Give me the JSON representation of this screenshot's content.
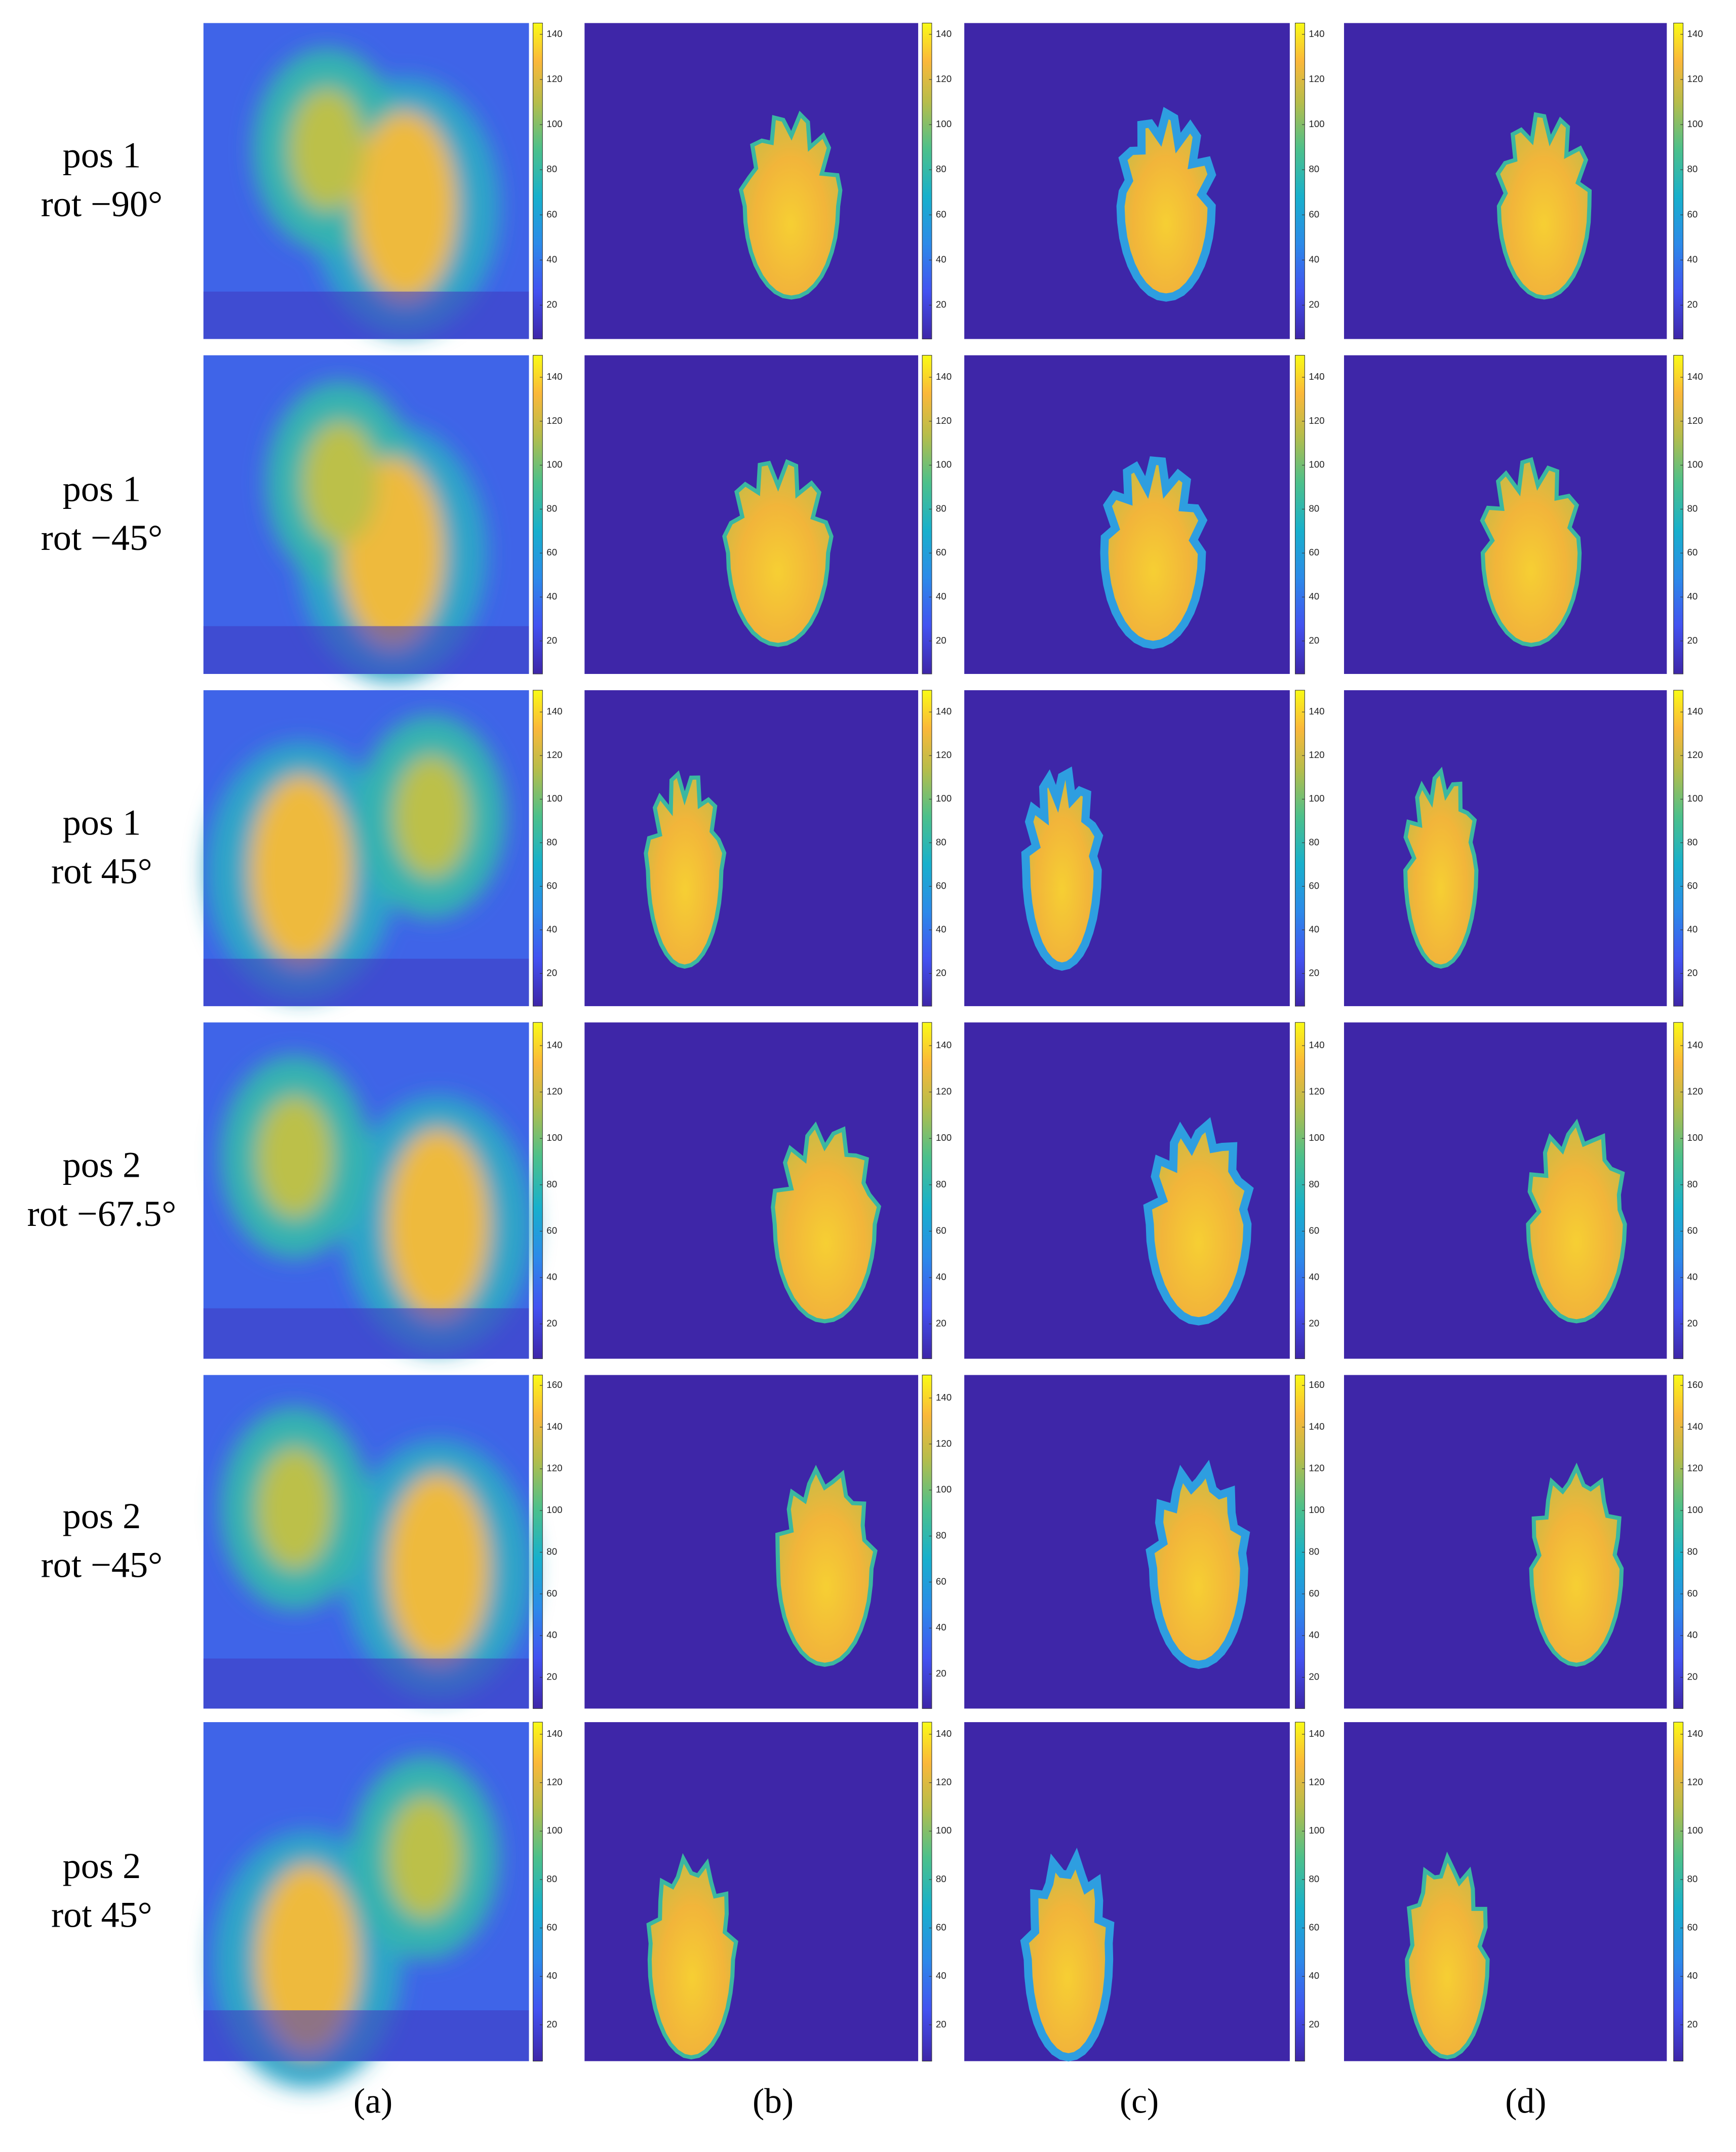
{
  "figure": {
    "column_labels": [
      "(a)",
      "(b)",
      "(c)",
      "(d)"
    ],
    "rows": [
      {
        "label": [
          "pos 1",
          "rot −90°"
        ],
        "panels": [
          {
            "clim": [
              5,
              145
            ],
            "colorbar_ticks": [
              20,
              40,
              60,
              80,
              100,
              120,
              140
            ]
          },
          {
            "clim": [
              5,
              145
            ],
            "colorbar_ticks": [
              20,
              40,
              60,
              80,
              100,
              120,
              140
            ]
          },
          {
            "clim": [
              5,
              145
            ],
            "colorbar_ticks": [
              20,
              40,
              60,
              80,
              100,
              120,
              140
            ]
          },
          {
            "clim": [
              5,
              145
            ],
            "colorbar_ticks": [
              20,
              40,
              60,
              80,
              100,
              120,
              140
            ]
          }
        ]
      },
      {
        "label": [
          "pos 1",
          "rot −45°"
        ],
        "panels": [
          {
            "clim": [
              5,
              150
            ],
            "colorbar_ticks": [
              20,
              40,
              60,
              80,
              100,
              120,
              140
            ]
          },
          {
            "clim": [
              5,
              150
            ],
            "colorbar_ticks": [
              20,
              40,
              60,
              80,
              100,
              120,
              140
            ]
          },
          {
            "clim": [
              5,
              150
            ],
            "colorbar_ticks": [
              20,
              40,
              60,
              80,
              100,
              120,
              140
            ]
          },
          {
            "clim": [
              5,
              150
            ],
            "colorbar_ticks": [
              20,
              40,
              60,
              80,
              100,
              120,
              140
            ]
          }
        ]
      },
      {
        "label": [
          "pos 1",
          "rot 45°"
        ],
        "panels": [
          {
            "clim": [
              5,
              150
            ],
            "colorbar_ticks": [
              20,
              40,
              60,
              80,
              100,
              120,
              140
            ]
          },
          {
            "clim": [
              5,
              150
            ],
            "colorbar_ticks": [
              20,
              40,
              60,
              80,
              100,
              120,
              140
            ]
          },
          {
            "clim": [
              5,
              150
            ],
            "colorbar_ticks": [
              20,
              40,
              60,
              80,
              100,
              120,
              140
            ]
          },
          {
            "clim": [
              5,
              150
            ],
            "colorbar_ticks": [
              20,
              40,
              60,
              80,
              100,
              120,
              140
            ]
          }
        ]
      },
      {
        "label": [
          "pos 2",
          "rot −67.5°"
        ],
        "panels": [
          {
            "clim": [
              5,
              150
            ],
            "colorbar_ticks": [
              20,
              40,
              60,
              80,
              100,
              120,
              140
            ]
          },
          {
            "clim": [
              5,
              150
            ],
            "colorbar_ticks": [
              20,
              40,
              60,
              80,
              100,
              120,
              140
            ]
          },
          {
            "clim": [
              5,
              150
            ],
            "colorbar_ticks": [
              20,
              40,
              60,
              80,
              100,
              120,
              140
            ]
          },
          {
            "clim": [
              5,
              150
            ],
            "colorbar_ticks": [
              20,
              40,
              60,
              80,
              100,
              120,
              140
            ]
          }
        ]
      },
      {
        "label": [
          "pos 2",
          "rot −45°"
        ],
        "panels": [
          {
            "clim": [
              5,
              165
            ],
            "colorbar_ticks": [
              20,
              40,
              60,
              80,
              100,
              120,
              140,
              160
            ]
          },
          {
            "clim": [
              5,
              150
            ],
            "colorbar_ticks": [
              20,
              40,
              60,
              80,
              100,
              120,
              140
            ]
          },
          {
            "clim": [
              5,
              165
            ],
            "colorbar_ticks": [
              20,
              40,
              60,
              80,
              100,
              120,
              140,
              160
            ]
          },
          {
            "clim": [
              5,
              165
            ],
            "colorbar_ticks": [
              20,
              40,
              60,
              80,
              100,
              120,
              140,
              160
            ]
          }
        ]
      },
      {
        "label": [
          "pos 2",
          "rot 45°"
        ],
        "panels": [
          {
            "clim": [
              5,
              145
            ],
            "colorbar_ticks": [
              20,
              40,
              60,
              80,
              100,
              120,
              140
            ]
          },
          {
            "clim": [
              5,
              145
            ],
            "colorbar_ticks": [
              20,
              40,
              60,
              80,
              100,
              120,
              140
            ]
          },
          {
            "clim": [
              5,
              145
            ],
            "colorbar_ticks": [
              20,
              40,
              60,
              80,
              100,
              120,
              140
            ]
          },
          {
            "clim": [
              5,
              145
            ],
            "colorbar_ticks": [
              20,
              40,
              60,
              80,
              100,
              120,
              140
            ]
          }
        ]
      }
    ]
  }
}
